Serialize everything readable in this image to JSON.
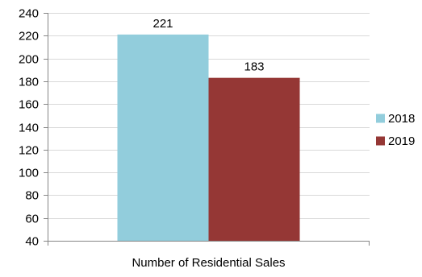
{
  "chart_data": {
    "type": "bar",
    "categories": [
      "Number of Residential Sales"
    ],
    "series": [
      {
        "name": "2018",
        "values": [
          221
        ]
      },
      {
        "name": "2019",
        "values": [
          183
        ]
      }
    ],
    "ylim": [
      40,
      240
    ],
    "yticks": [
      40,
      60,
      80,
      100,
      120,
      140,
      160,
      180,
      200,
      220,
      240
    ],
    "grid": true,
    "legend": "right",
    "colors": {
      "2018": "#92cddc",
      "2019": "#953735",
      "grid": "#d9d9d9",
      "axis": "#868686"
    }
  }
}
